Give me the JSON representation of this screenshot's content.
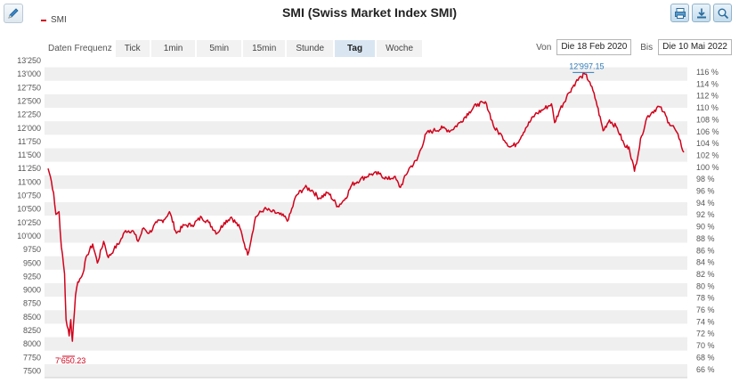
{
  "header": {
    "title": "SMI (Swiss Market Index SMI)",
    "legend": "SMI",
    "tools": [
      {
        "name": "print-icon"
      },
      {
        "name": "download-icon"
      },
      {
        "name": "zoom-icon"
      }
    ]
  },
  "toolbar": {
    "freq_label": "Daten Frequenz",
    "freq_options": [
      "Tick",
      "1min",
      "5min",
      "15min",
      "Stunde",
      "Tag",
      "Woche"
    ],
    "freq_selected": "Tag",
    "from_label": "Von",
    "from_value": "Die 18 Feb 2020",
    "to_label": "Bis",
    "to_value": "Die 10 Mai 2022"
  },
  "colors": {
    "line": "#d0021b",
    "max_label": "#2b7bb9",
    "min_label": "#d0021b",
    "band": "#efefef"
  },
  "chart_data": {
    "type": "line",
    "title": "SMI (Swiss Market Index SMI)",
    "series_name": "SMI",
    "y_left_ticks": [
      "13'250",
      "13'000",
      "12'750",
      "12'500",
      "12'250",
      "12'000",
      "11'750",
      "11'500",
      "11'250",
      "11'000",
      "10'750",
      "10'500",
      "10'250",
      "10'000",
      "9750",
      "9500",
      "9250",
      "9000",
      "8750",
      "8500",
      "8250",
      "8000",
      "7750",
      "7500"
    ],
    "y_right_ticks": [
      "116 %",
      "114 %",
      "112 %",
      "110 %",
      "108 %",
      "106 %",
      "104 %",
      "102 %",
      "100 %",
      "98 %",
      "96 %",
      "94 %",
      "92 %",
      "90 %",
      "88 %",
      "86 %",
      "84 %",
      "82 %",
      "80 %",
      "78 %",
      "76 %",
      "74 %",
      "72 %",
      "70 %",
      "68 %",
      "66 %"
    ],
    "ylim": [
      7400,
      13300
    ],
    "x_range": [
      "2020-02-18",
      "2022-05-10"
    ],
    "annotations": {
      "max": "12'997.15",
      "min": "7'650.23"
    },
    "points": [
      [
        "2020-02-18",
        11250
      ],
      [
        "2020-02-21",
        11100
      ],
      [
        "2020-02-25",
        10800
      ],
      [
        "2020-02-28",
        10400
      ],
      [
        "2020-03-03",
        10450
      ],
      [
        "2020-03-06",
        9800
      ],
      [
        "2020-03-10",
        9300
      ],
      [
        "2020-03-12",
        8450
      ],
      [
        "2020-03-16",
        8150
      ],
      [
        "2020-03-18",
        8450
      ],
      [
        "2020-03-20",
        8050
      ],
      [
        "2020-03-24",
        8900
      ],
      [
        "2020-03-27",
        9150
      ],
      [
        "2020-04-01",
        9250
      ],
      [
        "2020-04-08",
        9650
      ],
      [
        "2020-04-15",
        9850
      ],
      [
        "2020-04-21",
        9500
      ],
      [
        "2020-04-29",
        9900
      ],
      [
        "2020-05-05",
        9600
      ],
      [
        "2020-05-12",
        9750
      ],
      [
        "2020-05-20",
        9900
      ],
      [
        "2020-05-27",
        10100
      ],
      [
        "2020-06-05",
        10100
      ],
      [
        "2020-06-12",
        9900
      ],
      [
        "2020-06-19",
        10150
      ],
      [
        "2020-06-26",
        10050
      ],
      [
        "2020-07-06",
        10250
      ],
      [
        "2020-07-15",
        10300
      ],
      [
        "2020-07-22",
        10450
      ],
      [
        "2020-07-31",
        10050
      ],
      [
        "2020-08-10",
        10200
      ],
      [
        "2020-08-20",
        10200
      ],
      [
        "2020-09-01",
        10350
      ],
      [
        "2020-09-10",
        10250
      ],
      [
        "2020-09-21",
        10050
      ],
      [
        "2020-09-30",
        10250
      ],
      [
        "2020-10-09",
        10350
      ],
      [
        "2020-10-20",
        10150
      ],
      [
        "2020-10-30",
        9650
      ],
      [
        "2020-11-09",
        10350
      ],
      [
        "2020-11-20",
        10500
      ],
      [
        "2020-11-30",
        10450
      ],
      [
        "2020-12-10",
        10400
      ],
      [
        "2020-12-21",
        10300
      ],
      [
        "2020-12-31",
        10750
      ],
      [
        "2021-01-11",
        10900
      ],
      [
        "2021-01-20",
        10850
      ],
      [
        "2021-01-29",
        10700
      ],
      [
        "2021-02-10",
        10800
      ],
      [
        "2021-02-22",
        10550
      ],
      [
        "2021-03-04",
        10700
      ],
      [
        "2021-03-12",
        10950
      ],
      [
        "2021-03-23",
        11050
      ],
      [
        "2021-04-06",
        11150
      ],
      [
        "2021-04-16",
        11150
      ],
      [
        "2021-04-27",
        11050
      ],
      [
        "2021-05-05",
        11100
      ],
      [
        "2021-05-13",
        10900
      ],
      [
        "2021-05-24",
        11250
      ],
      [
        "2021-06-03",
        11400
      ],
      [
        "2021-06-15",
        11900
      ],
      [
        "2021-06-24",
        11950
      ],
      [
        "2021-07-06",
        12000
      ],
      [
        "2021-07-16",
        11950
      ],
      [
        "2021-07-28",
        12100
      ],
      [
        "2021-08-09",
        12300
      ],
      [
        "2021-08-20",
        12450
      ],
      [
        "2021-08-31",
        12450
      ],
      [
        "2021-09-10",
        12000
      ],
      [
        "2021-09-20",
        11850
      ],
      [
        "2021-09-30",
        11650
      ],
      [
        "2021-10-08",
        11700
      ],
      [
        "2021-10-20",
        12000
      ],
      [
        "2021-11-01",
        12250
      ],
      [
        "2021-11-12",
        12350
      ],
      [
        "2021-11-22",
        12450
      ],
      [
        "2021-11-26",
        12100
      ],
      [
        "2021-12-03",
        12350
      ],
      [
        "2021-12-14",
        12650
      ],
      [
        "2021-12-23",
        12850
      ],
      [
        "2021-12-30",
        12950
      ],
      [
        "2022-01-04",
        12997
      ],
      [
        "2022-01-10",
        12850
      ],
      [
        "2022-01-18",
        12500
      ],
      [
        "2022-01-27",
        11950
      ],
      [
        "2022-02-04",
        12150
      ],
      [
        "2022-02-14",
        12000
      ],
      [
        "2022-02-24",
        11650
      ],
      [
        "2022-03-01",
        11650
      ],
      [
        "2022-03-08",
        11200
      ],
      [
        "2022-03-17",
        11850
      ],
      [
        "2022-03-24",
        12200
      ],
      [
        "2022-03-31",
        12300
      ],
      [
        "2022-04-08",
        12400
      ],
      [
        "2022-04-14",
        12300
      ],
      [
        "2022-04-21",
        12100
      ],
      [
        "2022-04-28",
        12000
      ],
      [
        "2022-05-04",
        11800
      ],
      [
        "2022-05-10",
        11550
      ]
    ]
  }
}
